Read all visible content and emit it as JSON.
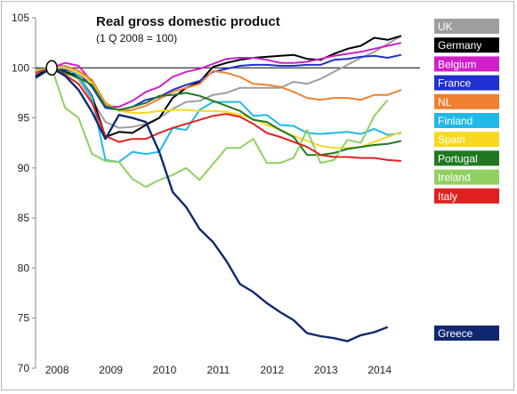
{
  "chart_data": {
    "type": "line",
    "title": "Real gross domestic product",
    "subtitle": "(1 Q 2008 = 100)",
    "xlabel": "",
    "ylabel": "",
    "x_tick_labels": [
      "2008",
      "2009",
      "2010",
      "2011",
      "2012",
      "2013",
      "2014"
    ],
    "y_ticks": [
      70,
      75,
      80,
      85,
      90,
      95,
      100,
      105
    ],
    "ylim": [
      70,
      105
    ],
    "xlim": [
      2007.7,
      2014.85
    ],
    "reference_line": 100,
    "legend_placement": "right",
    "series": [
      {
        "name": "UK",
        "color": "#9e9e9e",
        "x": [
          2007.7,
          2008.0,
          2008.25,
          2008.5,
          2008.75,
          2009.0,
          2009.25,
          2009.5,
          2009.75,
          2010.0,
          2010.25,
          2010.5,
          2010.75,
          2011.0,
          2011.25,
          2011.5,
          2011.75,
          2012.0,
          2012.25,
          2012.5,
          2012.75,
          2013.0,
          2013.25,
          2013.5,
          2013.75,
          2014.0,
          2014.25,
          2014.5
        ],
        "y": [
          99.0,
          100.0,
          99.6,
          98.9,
          96.8,
          94.6,
          94.0,
          94.1,
          94.4,
          95.0,
          95.9,
          96.6,
          96.7,
          97.3,
          97.5,
          98.0,
          98.0,
          98.0,
          98.0,
          98.6,
          98.4,
          98.9,
          99.6,
          100.3,
          101.0,
          101.6,
          102.4,
          103.2
        ]
      },
      {
        "name": "Germany",
        "color": "#000000",
        "x": [
          2007.7,
          2008.0,
          2008.25,
          2008.5,
          2008.75,
          2009.0,
          2009.25,
          2009.5,
          2009.75,
          2010.0,
          2010.25,
          2010.5,
          2010.75,
          2011.0,
          2011.25,
          2011.5,
          2011.75,
          2012.0,
          2012.25,
          2012.5,
          2012.75,
          2013.0,
          2013.25,
          2013.5,
          2013.75,
          2014.0,
          2014.25,
          2014.5
        ],
        "y": [
          99.2,
          100.0,
          99.6,
          99.2,
          97.2,
          93.1,
          93.6,
          93.5,
          94.3,
          95.0,
          97.0,
          98.0,
          98.6,
          100.1,
          100.5,
          100.8,
          101.0,
          101.1,
          101.2,
          101.3,
          100.9,
          100.8,
          101.4,
          101.9,
          102.2,
          103.0,
          102.8,
          103.2
        ]
      },
      {
        "name": "Belgium",
        "color": "#d020c8",
        "x": [
          2007.7,
          2008.0,
          2008.25,
          2008.5,
          2008.75,
          2009.0,
          2009.25,
          2009.5,
          2009.75,
          2010.0,
          2010.25,
          2010.5,
          2010.75,
          2011.0,
          2011.25,
          2011.5,
          2011.75,
          2012.0,
          2012.25,
          2012.5,
          2012.75,
          2013.0,
          2013.25,
          2013.5,
          2013.75,
          2014.0,
          2014.25,
          2014.5
        ],
        "y": [
          99.5,
          100.0,
          100.5,
          100.2,
          98.6,
          96.2,
          96.1,
          96.7,
          97.6,
          98.1,
          99.1,
          99.6,
          99.9,
          100.4,
          100.9,
          101.0,
          101.0,
          100.8,
          100.5,
          100.5,
          100.6,
          100.9,
          101.2,
          101.4,
          101.6,
          101.9,
          102.2,
          102.5
        ]
      },
      {
        "name": "France",
        "color": "#2030d0",
        "x": [
          2007.7,
          2008.0,
          2008.25,
          2008.5,
          2008.75,
          2009.0,
          2009.25,
          2009.5,
          2009.75,
          2010.0,
          2010.25,
          2010.5,
          2010.75,
          2011.0,
          2011.25,
          2011.5,
          2011.75,
          2012.0,
          2012.25,
          2012.5,
          2012.75,
          2013.0,
          2013.25,
          2013.5,
          2013.75,
          2014.0,
          2014.25,
          2014.5
        ],
        "y": [
          99.6,
          100.0,
          99.8,
          99.5,
          98.1,
          96.0,
          95.8,
          96.1,
          96.8,
          97.1,
          97.8,
          98.3,
          98.7,
          99.6,
          99.9,
          100.2,
          100.3,
          100.3,
          100.2,
          100.2,
          100.3,
          100.3,
          100.8,
          100.9,
          101.1,
          101.2,
          101.0,
          101.3
        ]
      },
      {
        "name": "NL",
        "color": "#f08030",
        "x": [
          2007.7,
          2008.0,
          2008.25,
          2008.5,
          2008.75,
          2009.0,
          2009.25,
          2009.5,
          2009.75,
          2010.0,
          2010.25,
          2010.5,
          2010.75,
          2011.0,
          2011.25,
          2011.5,
          2011.75,
          2012.0,
          2012.25,
          2012.5,
          2012.75,
          2013.0,
          2013.25,
          2013.5,
          2013.75,
          2014.0,
          2014.25,
          2014.5
        ],
        "y": [
          99.6,
          100.0,
          100.2,
          99.7,
          98.8,
          96.5,
          95.7,
          95.8,
          96.2,
          96.9,
          97.6,
          98.0,
          98.4,
          99.7,
          99.5,
          99.1,
          98.4,
          98.3,
          98.1,
          97.6,
          97.0,
          96.8,
          97.0,
          97.0,
          96.8,
          97.3,
          97.3,
          97.8
        ]
      },
      {
        "name": "Finland",
        "color": "#20b8e8",
        "x": [
          2007.7,
          2008.0,
          2008.25,
          2008.5,
          2008.75,
          2009.0,
          2009.25,
          2009.5,
          2009.75,
          2010.0,
          2010.25,
          2010.5,
          2010.75,
          2011.0,
          2011.25,
          2011.5,
          2011.75,
          2012.0,
          2012.25,
          2012.5,
          2012.75,
          2013.0,
          2013.25,
          2013.5,
          2013.75,
          2014.0,
          2014.25,
          2014.5
        ],
        "y": [
          99.5,
          100.0,
          100.1,
          99.2,
          97.1,
          90.8,
          90.6,
          91.6,
          91.4,
          91.6,
          94.0,
          93.8,
          95.8,
          96.6,
          96.6,
          96.6,
          95.2,
          95.3,
          94.3,
          94.2,
          93.5,
          93.4,
          93.5,
          93.6,
          93.4,
          93.9,
          93.3,
          93.5
        ]
      },
      {
        "name": "Spain",
        "color": "#f8d820",
        "x": [
          2007.7,
          2008.0,
          2008.25,
          2008.5,
          2008.75,
          2009.0,
          2009.25,
          2009.5,
          2009.75,
          2010.0,
          2010.25,
          2010.5,
          2010.75,
          2011.0,
          2011.25,
          2011.5,
          2011.75,
          2012.0,
          2012.25,
          2012.5,
          2012.75,
          2013.0,
          2013.25,
          2013.5,
          2013.75,
          2014.0,
          2014.25,
          2014.5
        ],
        "y": [
          99.7,
          100.0,
          100.0,
          99.5,
          98.5,
          96.3,
          95.7,
          95.5,
          95.5,
          95.7,
          95.8,
          95.8,
          95.7,
          95.7,
          95.6,
          95.3,
          94.9,
          94.3,
          93.8,
          93.2,
          92.7,
          92.2,
          92.0,
          92.0,
          92.1,
          92.6,
          93.1,
          93.6
        ]
      },
      {
        "name": "Portugal",
        "color": "#207820",
        "x": [
          2007.7,
          2008.0,
          2008.25,
          2008.5,
          2008.75,
          2009.0,
          2009.25,
          2009.5,
          2009.75,
          2010.0,
          2010.25,
          2010.5,
          2010.75,
          2011.0,
          2011.25,
          2011.5,
          2011.75,
          2012.0,
          2012.25,
          2012.5,
          2012.75,
          2013.0,
          2013.25,
          2013.5,
          2013.75,
          2014.0,
          2014.25,
          2014.5
        ],
        "y": [
          99.8,
          100.0,
          99.5,
          99.0,
          98.3,
          96.2,
          95.8,
          96.1,
          96.5,
          97.2,
          97.3,
          97.5,
          97.2,
          96.7,
          96.2,
          95.7,
          94.8,
          94.6,
          93.8,
          93.1,
          91.3,
          91.3,
          91.5,
          91.9,
          92.1,
          92.3,
          92.4,
          92.7
        ]
      },
      {
        "name": "Ireland",
        "color": "#90d060",
        "x": [
          2007.7,
          2008.0,
          2008.25,
          2008.5,
          2008.75,
          2009.0,
          2009.25,
          2009.5,
          2009.75,
          2010.0,
          2010.25,
          2010.5,
          2010.75,
          2011.0,
          2011.25,
          2011.5,
          2011.75,
          2012.0,
          2012.25,
          2012.5,
          2012.75,
          2013.0,
          2013.25,
          2013.5,
          2013.75,
          2014.0,
          2014.25,
          2014.5
        ],
        "y": [
          99.8,
          100.0,
          96.0,
          95.0,
          91.4,
          90.7,
          90.6,
          88.9,
          88.1,
          88.8,
          89.3,
          90.0,
          88.8,
          90.4,
          92.0,
          92.0,
          92.9,
          90.5,
          90.5,
          91.0,
          93.8,
          90.5,
          90.8,
          92.8,
          92.5,
          95.2,
          96.8,
          null
        ]
      },
      {
        "name": "Italy",
        "color": "#e02020",
        "x": [
          2007.7,
          2008.0,
          2008.25,
          2008.5,
          2008.75,
          2009.0,
          2009.25,
          2009.5,
          2009.75,
          2010.0,
          2010.25,
          2010.5,
          2010.75,
          2011.0,
          2011.25,
          2011.5,
          2011.75,
          2012.0,
          2012.25,
          2012.5,
          2012.75,
          2013.0,
          2013.25,
          2013.5,
          2013.75,
          2014.0,
          2014.25,
          2014.5
        ],
        "y": [
          99.5,
          100.0,
          99.3,
          98.4,
          96.5,
          93.2,
          92.6,
          92.9,
          92.9,
          93.5,
          94.0,
          94.4,
          94.8,
          95.2,
          95.4,
          95.1,
          94.4,
          93.5,
          93.1,
          92.6,
          92.1,
          91.3,
          91.1,
          91.1,
          91.0,
          91.0,
          90.8,
          90.7
        ]
      },
      {
        "name": "Greece",
        "color": "#102870",
        "x": [
          2007.7,
          2008.0,
          2008.25,
          2008.5,
          2008.75,
          2009.0,
          2009.25,
          2009.5,
          2009.75,
          2010.0,
          2010.25,
          2010.5,
          2010.75,
          2011.0,
          2011.25,
          2011.5,
          2011.75,
          2012.0,
          2012.25,
          2012.5,
          2012.75,
          2013.0,
          2013.25,
          2013.5,
          2013.75,
          2014.0,
          2014.25,
          2014.5
        ],
        "y": [
          99.0,
          100.0,
          99.2,
          97.8,
          95.6,
          92.9,
          95.3,
          95.0,
          94.6,
          91.6,
          87.6,
          86.1,
          83.9,
          82.6,
          80.7,
          78.4,
          77.6,
          76.5,
          75.6,
          74.8,
          73.5,
          73.2,
          73.0,
          72.7,
          73.3,
          73.6,
          74.1,
          null
        ]
      }
    ]
  }
}
